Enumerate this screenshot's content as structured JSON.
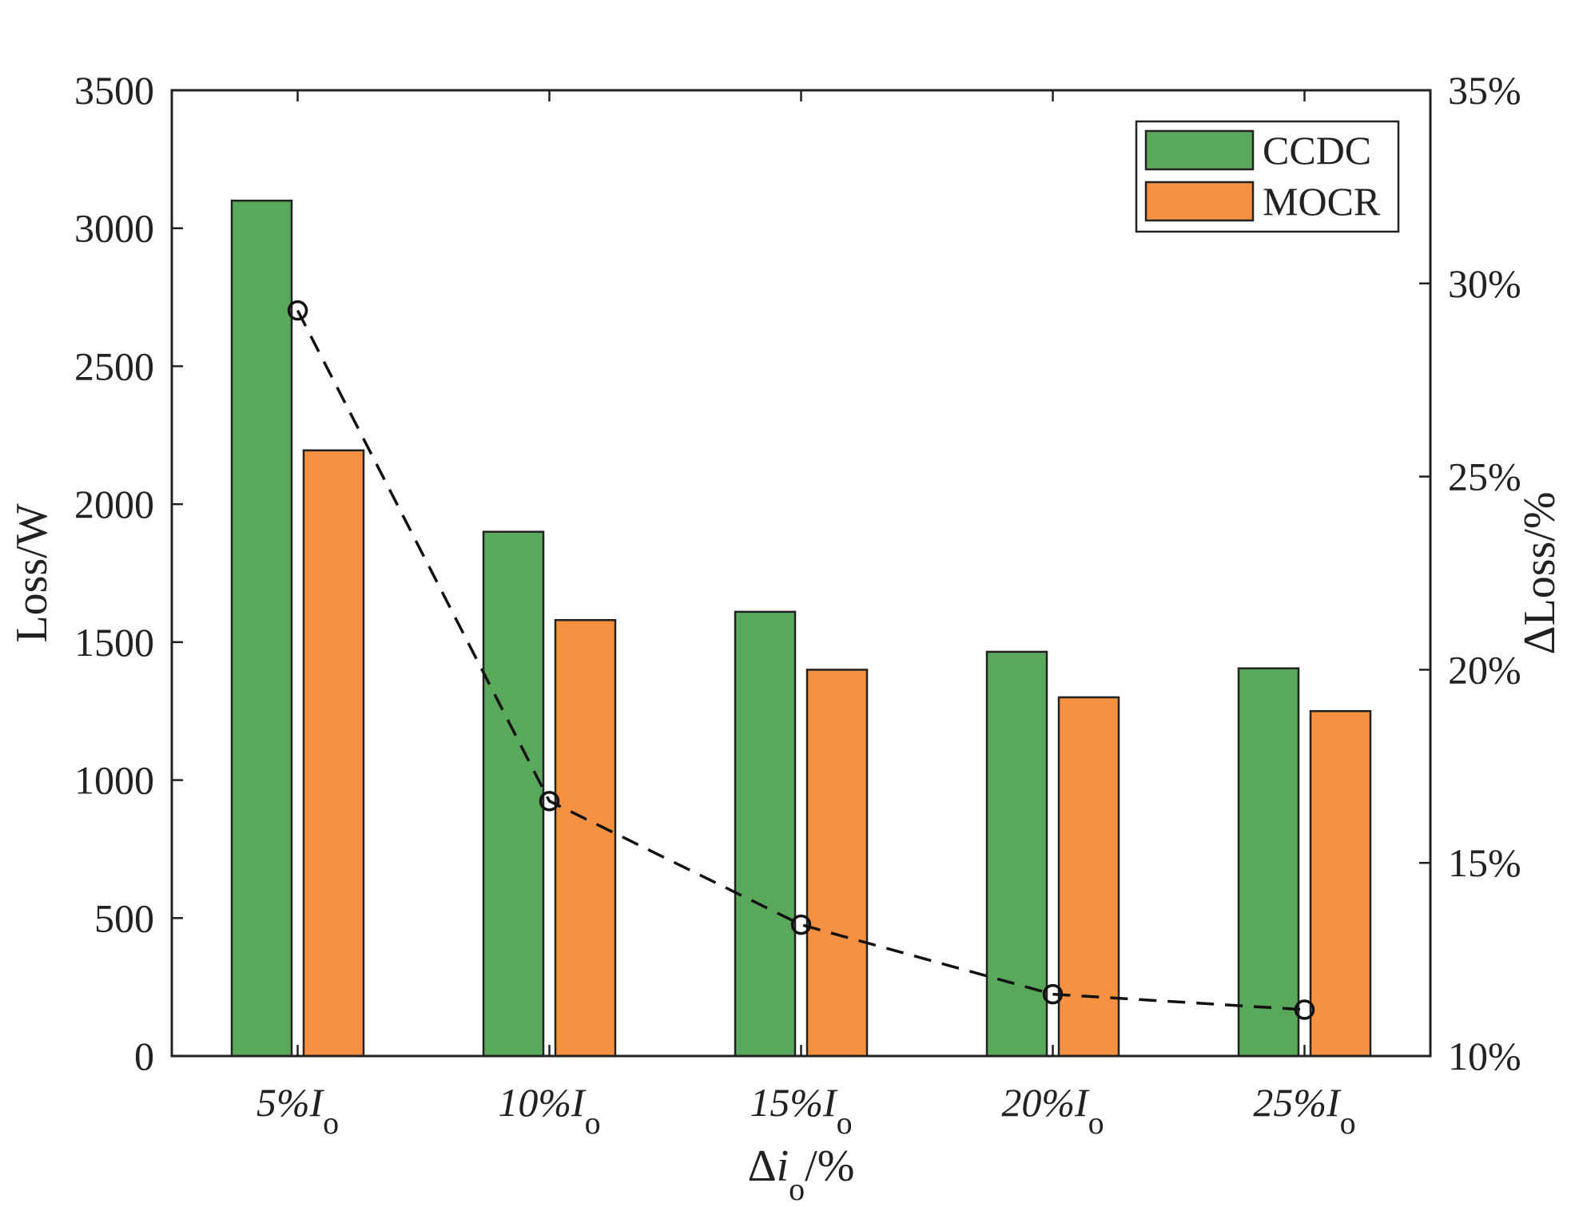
{
  "chart_data": {
    "type": "bar",
    "categories": [
      {
        "prefix": "5%",
        "var": "I",
        "sub": "o"
      },
      {
        "prefix": "10%",
        "var": "I",
        "sub": "o"
      },
      {
        "prefix": "15%",
        "var": "I",
        "sub": "o"
      },
      {
        "prefix": "20%",
        "var": "I",
        "sub": "o"
      },
      {
        "prefix": "25%",
        "var": "I",
        "sub": "o"
      }
    ],
    "series": [
      {
        "name": "CCDC",
        "color": "#59a85b",
        "values": [
          3100,
          1900,
          1610,
          1465,
          1405
        ]
      },
      {
        "name": "MOCR",
        "color": "#f59140",
        "values": [
          2195,
          1580,
          1400,
          1300,
          1250
        ]
      }
    ],
    "line_series": {
      "name": "ΔLoss",
      "axis": "right",
      "style": "dashed",
      "marker": "circle",
      "color": "#111111",
      "values": [
        29.3,
        16.6,
        13.4,
        11.6,
        11.2
      ]
    },
    "ylabel": "Loss/W",
    "ylim": [
      0,
      3500
    ],
    "yticks": [
      "0",
      "500",
      "1000",
      "1500",
      "2000",
      "2500",
      "3000",
      "3500"
    ],
    "y2label": "ΔLoss/%",
    "y2lim": [
      10,
      35
    ],
    "y2ticks": [
      "10%",
      "15%",
      "20%",
      "25%",
      "30%",
      "35%"
    ],
    "xlabel": {
      "prefix": "Δ",
      "var": "i",
      "sub": "o",
      "suffix": "/%"
    },
    "legend_position": "top-right",
    "grid": false
  }
}
